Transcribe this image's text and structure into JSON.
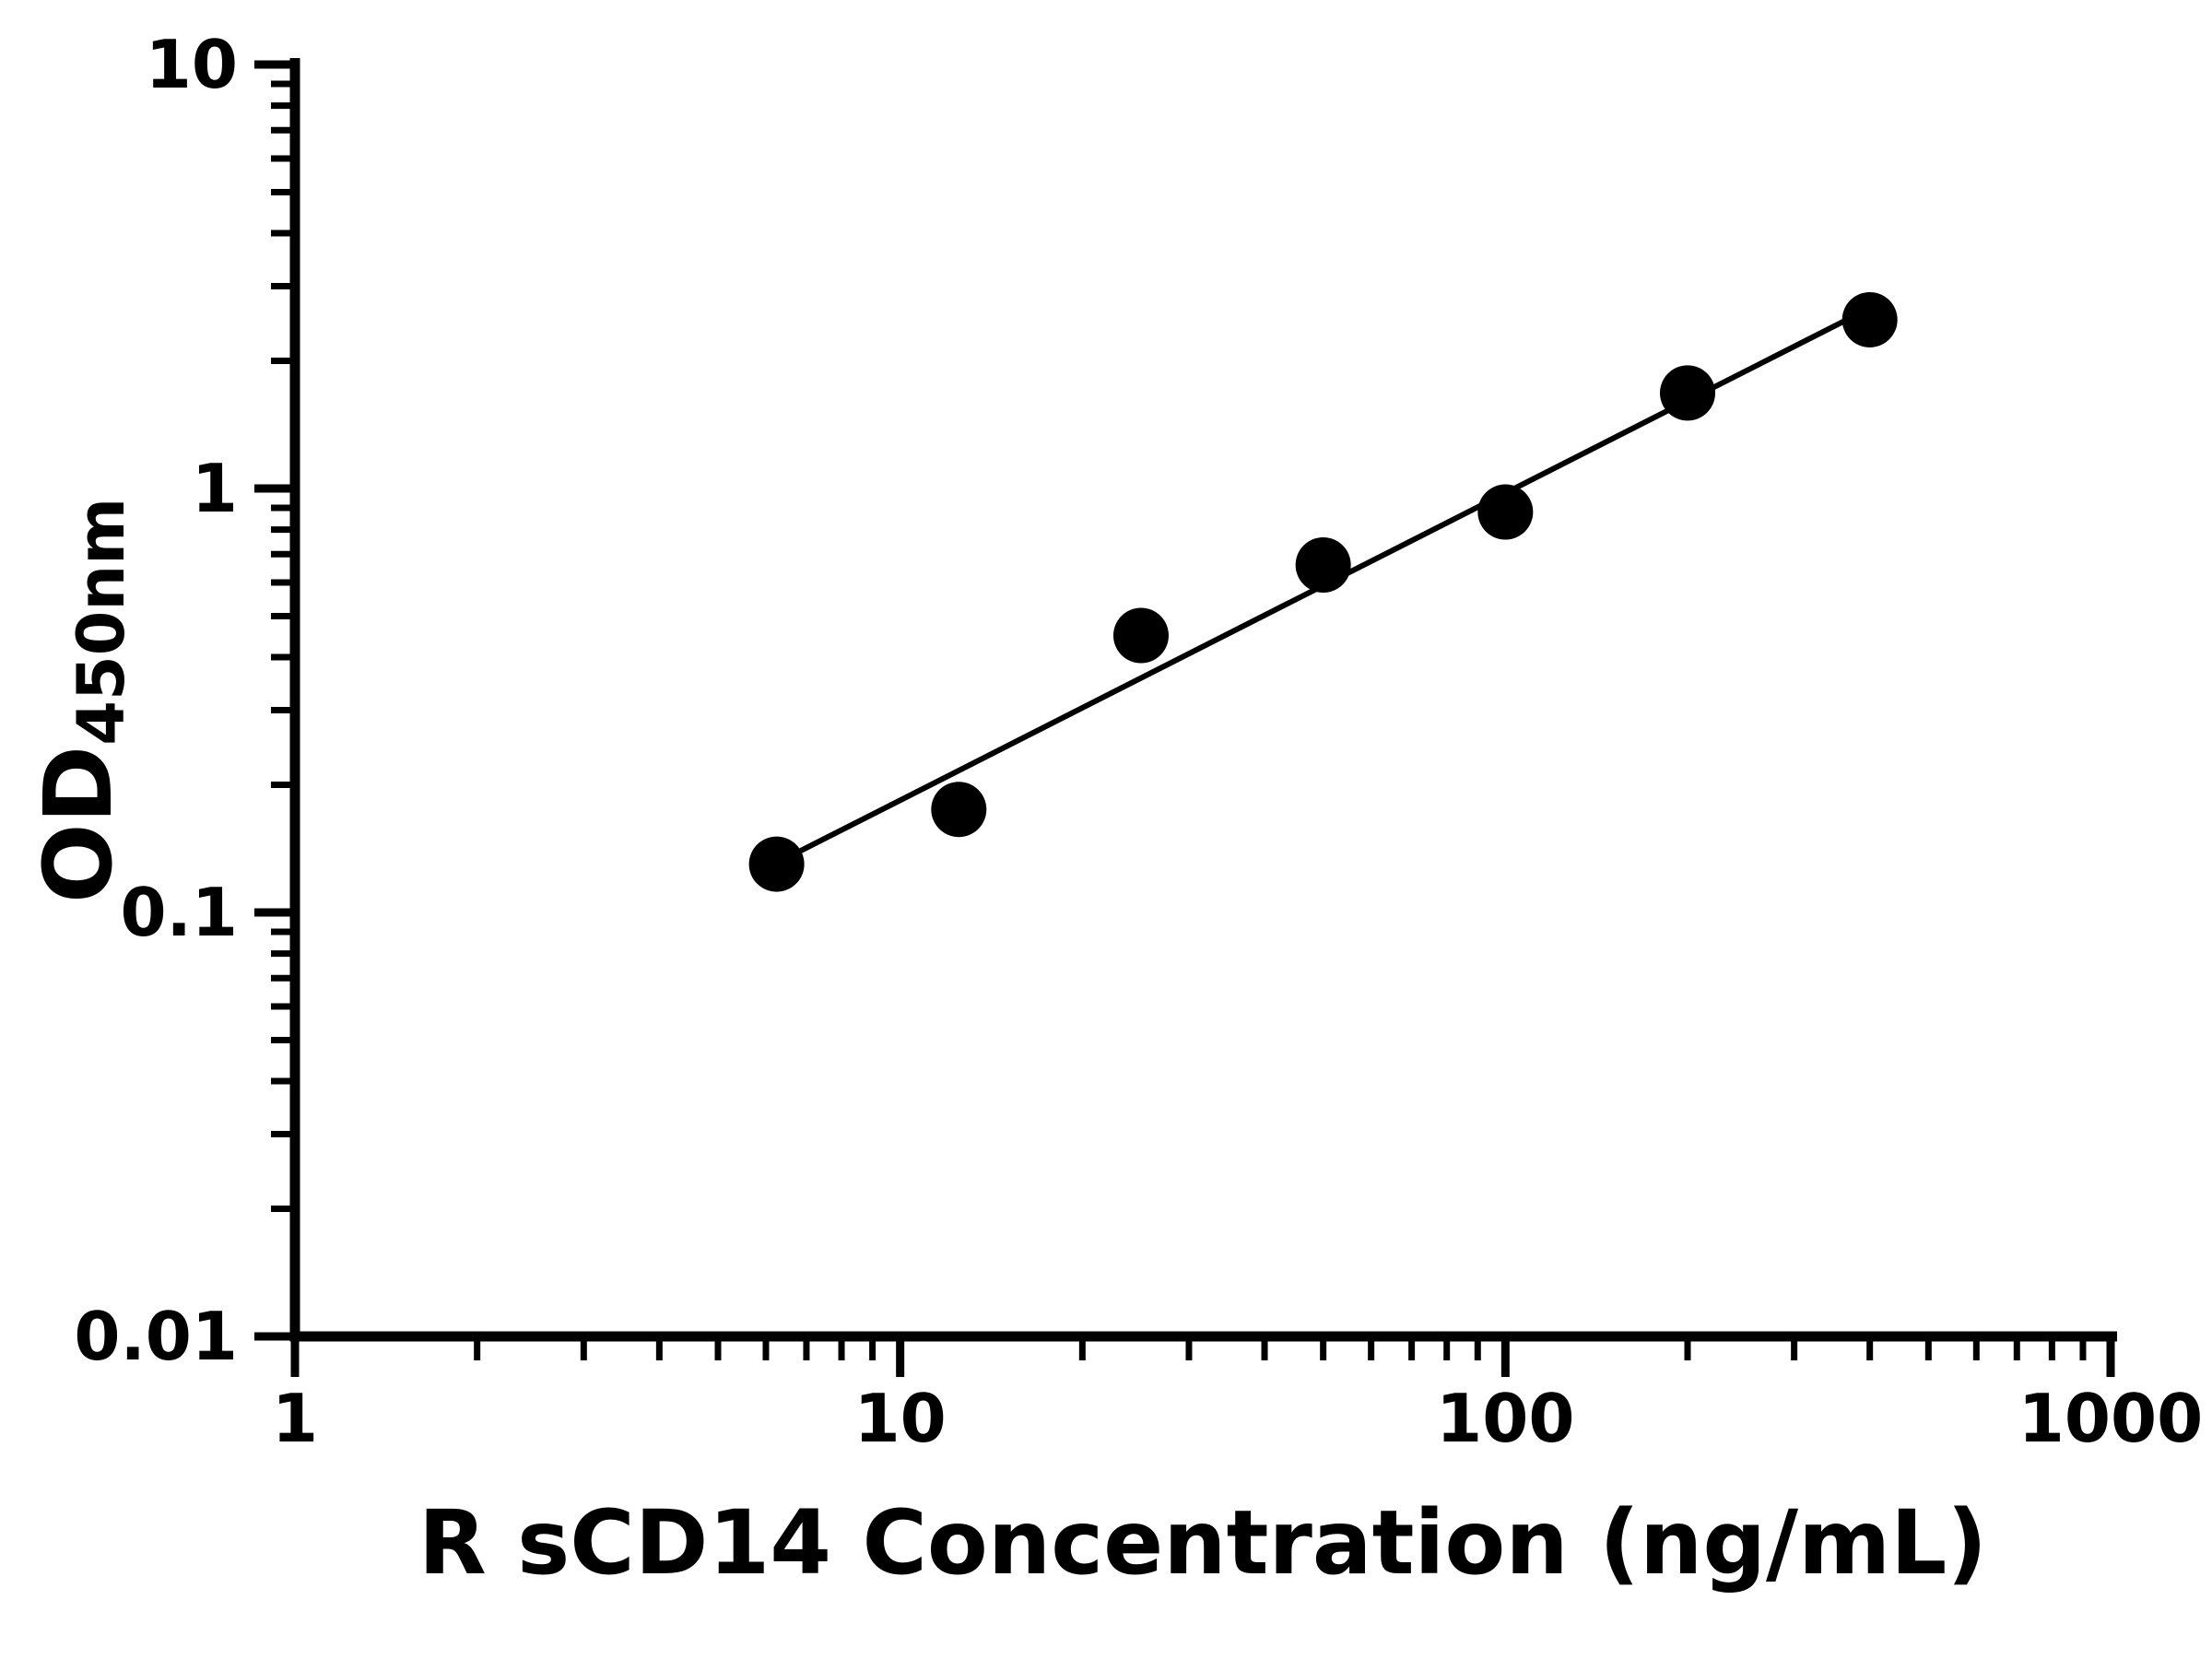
{
  "chart_data": {
    "type": "scatter",
    "title": "",
    "xlabel": "R sCD14 Concentration (ng/mL)",
    "ylabel_main": "OD",
    "ylabel_sub": "450nm",
    "x_scale": "log",
    "y_scale": "log",
    "xlim": [
      1,
      1000
    ],
    "ylim": [
      0.01,
      10
    ],
    "x_ticks": [
      1,
      10,
      100,
      1000
    ],
    "x_tick_labels": [
      "1",
      "10",
      "100",
      "1000"
    ],
    "y_ticks": [
      0.01,
      0.1,
      1,
      10
    ],
    "y_tick_labels": [
      "0.01",
      "0.1",
      "1",
      "10"
    ],
    "minor_ticks": true,
    "grid": false,
    "legend": "none",
    "points": {
      "x": [
        6.25,
        12.5,
        25,
        50,
        100,
        200,
        400
      ],
      "y": [
        0.13,
        0.175,
        0.45,
        0.66,
        0.88,
        1.68,
        2.5
      ]
    },
    "trendline": true,
    "marker_color": "#000000",
    "line_color": "#000000",
    "axis_color": "#000000",
    "background": "#ffffff"
  }
}
